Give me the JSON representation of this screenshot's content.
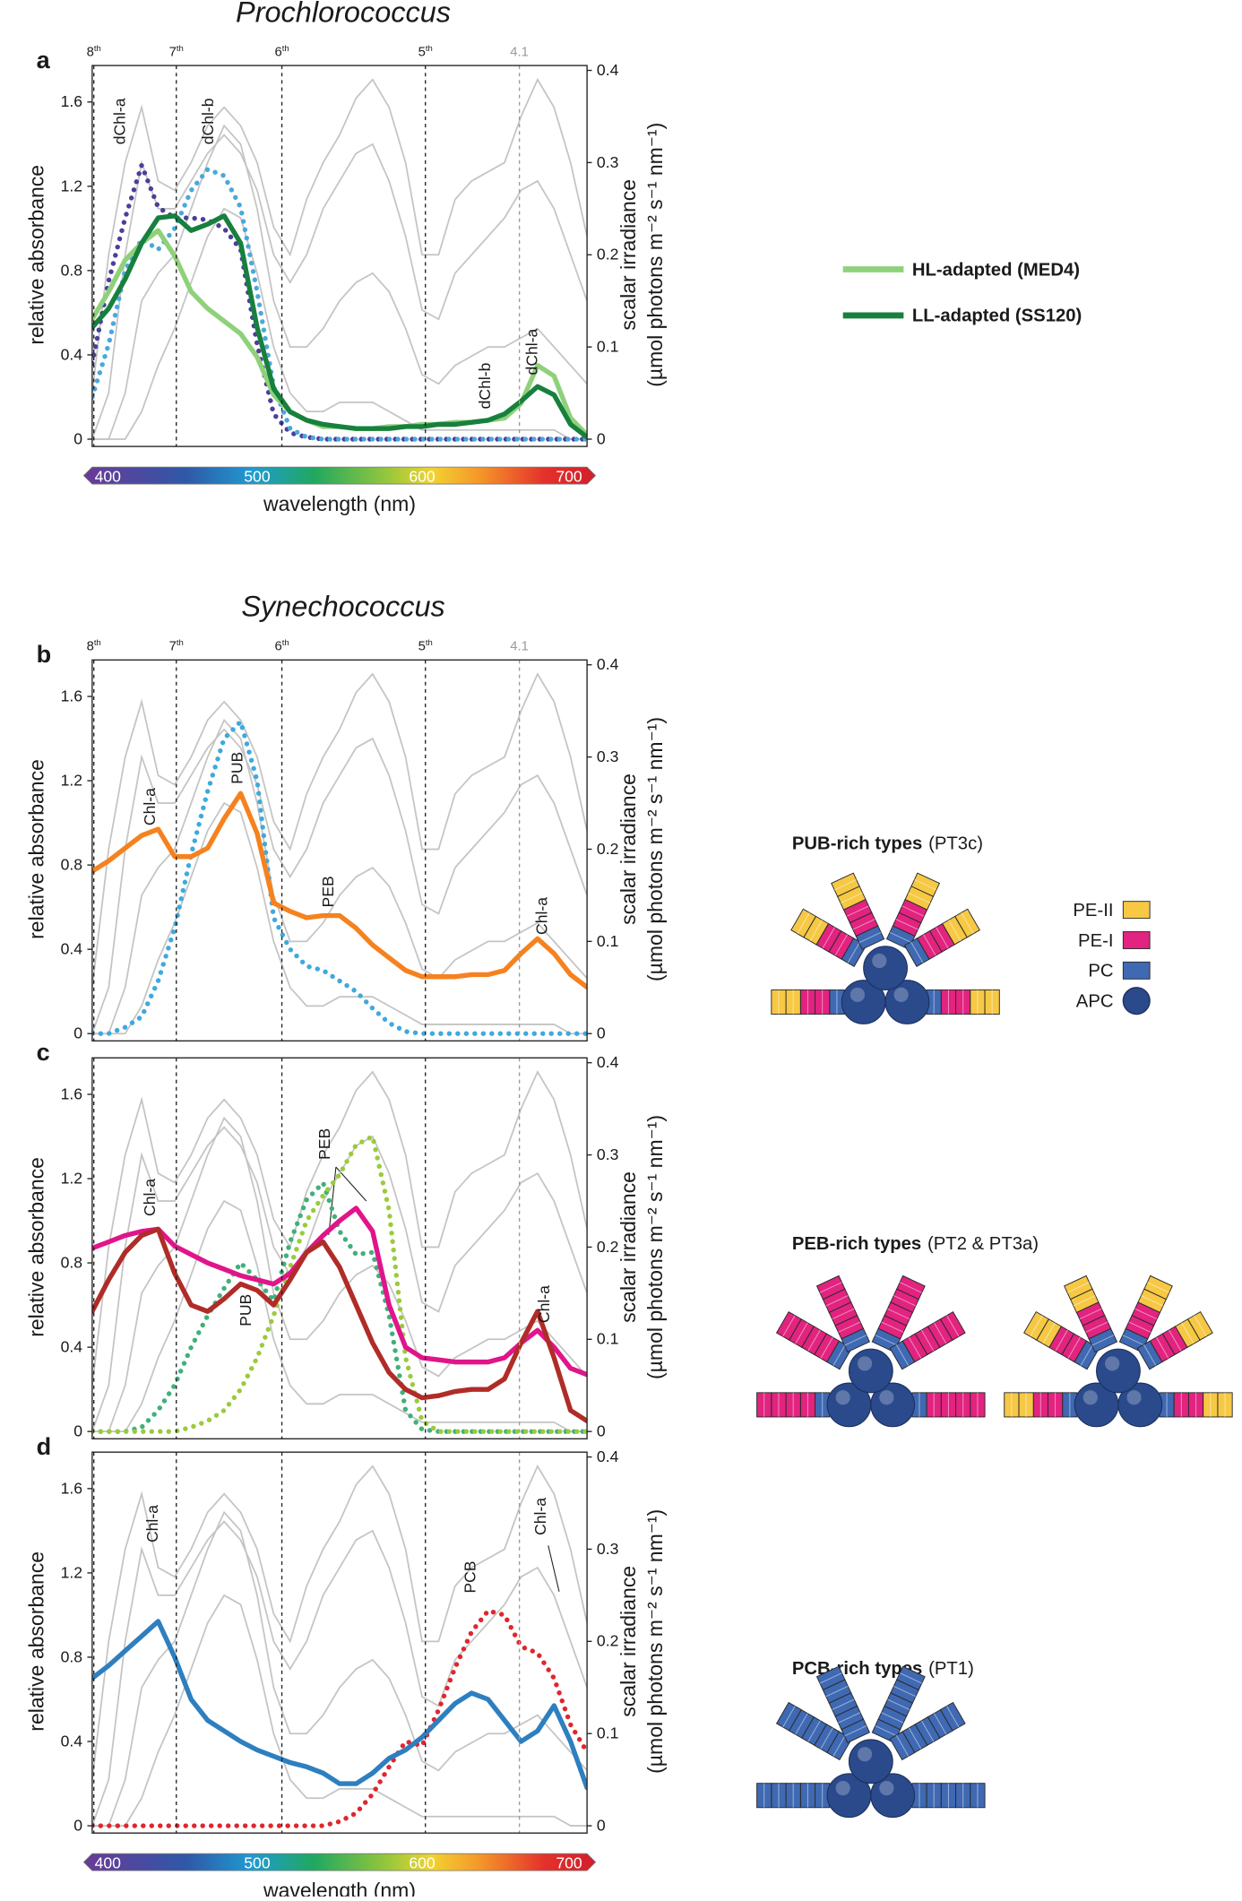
{
  "chart_data": [
    {
      "type": "line",
      "panel": "a",
      "title": "Prochlorococcus",
      "depth_labels": true,
      "x": [
        400,
        410,
        420,
        430,
        440,
        450,
        460,
        470,
        480,
        490,
        500,
        510,
        520,
        530,
        540,
        550,
        560,
        570,
        580,
        590,
        600,
        610,
        620,
        630,
        640,
        650,
        660,
        670,
        680,
        690,
        700
      ],
      "xlim": [
        400,
        700
      ],
      "xticks": [
        400,
        500,
        600,
        700
      ],
      "xlabel": "wavelength (nm)",
      "ylim": [
        0,
        1.75
      ],
      "yticks": [
        0,
        0.4,
        0.8,
        1.2,
        1.6
      ],
      "ylabel": "relative absorbance",
      "y2lim": [
        0,
        0.4
      ],
      "y2ticks": [
        0,
        0.1,
        0.2,
        0.3,
        0.4
      ],
      "y2label": [
        "scalar irradiance",
        "(µmol photons m⁻² s⁻¹ nm⁻¹)"
      ],
      "series": [
        {
          "color": "#4b3f98",
          "style": "dotted",
          "values": [
            0.36,
            0.75,
            1.05,
            1.3,
            1.1,
            1.05,
            1.05,
            1.04,
            1.0,
            0.9,
            0.45,
            0.12,
            0.03,
            0.01,
            0,
            0,
            0,
            0,
            0,
            0,
            0,
            0,
            0,
            0,
            0,
            0,
            0,
            0,
            0,
            0,
            0
          ]
        },
        {
          "color": "#4aa8dc",
          "style": "dotted",
          "values": [
            0.2,
            0.45,
            0.8,
            0.95,
            0.9,
            1.0,
            1.18,
            1.28,
            1.25,
            1.1,
            0.7,
            0.25,
            0.05,
            0.01,
            0,
            0,
            0,
            0,
            0,
            0,
            0,
            0,
            0,
            0,
            0,
            0,
            0,
            0,
            0,
            0,
            0
          ]
        },
        {
          "name": "HL-adapted (MED4)",
          "color": "#8fd17a",
          "style": "solid",
          "values": [
            0.57,
            0.7,
            0.85,
            0.93,
            0.99,
            0.87,
            0.7,
            0.62,
            0.56,
            0.5,
            0.39,
            0.21,
            0.13,
            0.09,
            0.06,
            0.06,
            0.05,
            0.05,
            0.06,
            0.06,
            0.07,
            0.07,
            0.08,
            0.08,
            0.09,
            0.1,
            0.17,
            0.35,
            0.3,
            0.1,
            0.02
          ]
        },
        {
          "name": "LL-adapted (SS120)",
          "color": "#17803d",
          "style": "solid",
          "values": [
            0.53,
            0.62,
            0.76,
            0.93,
            1.05,
            1.06,
            0.99,
            1.02,
            1.06,
            0.93,
            0.53,
            0.24,
            0.13,
            0.09,
            0.07,
            0.06,
            0.05,
            0.05,
            0.05,
            0.06,
            0.06,
            0.07,
            0.07,
            0.08,
            0.09,
            0.12,
            0.18,
            0.25,
            0.21,
            0.07,
            0.01
          ]
        }
      ],
      "annotations": [
        "dChl-a",
        "dChl-b",
        "dChl-b",
        "dChl-a"
      ]
    },
    {
      "type": "line",
      "panel": "b",
      "title": "Synechococcus",
      "depth_labels": true,
      "x": [
        400,
        410,
        420,
        430,
        440,
        450,
        460,
        470,
        480,
        490,
        500,
        510,
        520,
        530,
        540,
        550,
        560,
        570,
        580,
        590,
        600,
        610,
        620,
        630,
        640,
        650,
        660,
        670,
        680,
        690,
        700
      ],
      "xlim": [
        400,
        700
      ],
      "ylim": [
        0,
        1.75
      ],
      "yticks": [
        0,
        0.4,
        0.8,
        1.2,
        1.6
      ],
      "ylabel": "relative absorbance",
      "y2lim": [
        0,
        0.4
      ],
      "y2ticks": [
        0,
        0.1,
        0.2,
        0.3,
        0.4
      ],
      "y2label": [
        "scalar irradiance",
        "(µmol photons m⁻² s⁻¹ nm⁻¹)"
      ],
      "series": [
        {
          "color": "#3fa9dc",
          "style": "dotted",
          "values": [
            0,
            0,
            0.03,
            0.08,
            0.25,
            0.5,
            0.85,
            1.15,
            1.4,
            1.48,
            1.2,
            0.55,
            0.4,
            0.32,
            0.3,
            0.25,
            0.2,
            0.12,
            0.05,
            0.01,
            0,
            0,
            0,
            0,
            0,
            0,
            0,
            0,
            0,
            0,
            0
          ]
        },
        {
          "color": "#f5821f",
          "style": "solid",
          "values": [
            0.77,
            0.82,
            0.88,
            0.94,
            0.97,
            0.84,
            0.84,
            0.88,
            1.02,
            1.14,
            0.95,
            0.62,
            0.58,
            0.55,
            0.56,
            0.56,
            0.5,
            0.42,
            0.36,
            0.3,
            0.27,
            0.27,
            0.27,
            0.28,
            0.28,
            0.3,
            0.38,
            0.45,
            0.38,
            0.28,
            0.22
          ]
        }
      ],
      "annotations": [
        "Chl-a",
        "PUB",
        "PEB",
        "Chl-a"
      ]
    },
    {
      "type": "line",
      "panel": "c",
      "depth_labels": false,
      "x": [
        400,
        410,
        420,
        430,
        440,
        450,
        460,
        470,
        480,
        490,
        500,
        510,
        520,
        530,
        540,
        550,
        560,
        570,
        580,
        590,
        600,
        610,
        620,
        630,
        640,
        650,
        660,
        670,
        680,
        690,
        700
      ],
      "xlim": [
        400,
        700
      ],
      "ylim": [
        0,
        1.75
      ],
      "yticks": [
        0,
        0.4,
        0.8,
        1.2,
        1.6
      ],
      "ylabel": "relative absorbance",
      "y2lim": [
        0,
        0.4
      ],
      "y2ticks": [
        0,
        0.1,
        0.2,
        0.3,
        0.4
      ],
      "y2label": [
        "scalar irradiance",
        "(µmol photons m⁻² s⁻¹ nm⁻¹)"
      ],
      "series": [
        {
          "color": "#40b07a",
          "style": "dotted",
          "values": [
            0,
            0,
            0,
            0.02,
            0.1,
            0.22,
            0.4,
            0.55,
            0.68,
            0.8,
            0.72,
            0.62,
            0.9,
            1.1,
            1.18,
            0.95,
            0.84,
            0.85,
            0.55,
            0.1,
            0.01,
            0,
            0,
            0,
            0,
            0,
            0,
            0,
            0,
            0,
            0
          ]
        },
        {
          "color": "#9acb3c",
          "style": "dotted",
          "values": [
            0,
            0,
            0,
            0,
            0,
            0,
            0.02,
            0.05,
            0.1,
            0.2,
            0.35,
            0.55,
            0.78,
            1.0,
            1.12,
            1.22,
            1.36,
            1.4,
            1.05,
            0.35,
            0.05,
            0,
            0,
            0,
            0,
            0,
            0,
            0,
            0,
            0,
            0
          ]
        },
        {
          "color": "#e0158a",
          "style": "solid",
          "values": [
            0.87,
            0.9,
            0.93,
            0.95,
            0.96,
            0.88,
            0.84,
            0.8,
            0.77,
            0.74,
            0.72,
            0.7,
            0.75,
            0.85,
            0.93,
            1.0,
            1.06,
            0.95,
            0.6,
            0.4,
            0.35,
            0.34,
            0.33,
            0.33,
            0.33,
            0.35,
            0.42,
            0.48,
            0.4,
            0.3,
            0.27
          ]
        },
        {
          "color": "#b02c28",
          "style": "solid",
          "values": [
            0.57,
            0.72,
            0.85,
            0.93,
            0.96,
            0.75,
            0.6,
            0.57,
            0.63,
            0.7,
            0.67,
            0.6,
            0.72,
            0.85,
            0.9,
            0.78,
            0.6,
            0.42,
            0.28,
            0.2,
            0.16,
            0.17,
            0.19,
            0.2,
            0.2,
            0.25,
            0.42,
            0.57,
            0.35,
            0.1,
            0.05
          ]
        }
      ],
      "annotations": [
        "Chl-a",
        "PEB",
        "PUB",
        "Chl-a"
      ]
    },
    {
      "type": "line",
      "panel": "d",
      "depth_labels": false,
      "x": [
        400,
        410,
        420,
        430,
        440,
        450,
        460,
        470,
        480,
        490,
        500,
        510,
        520,
        530,
        540,
        550,
        560,
        570,
        580,
        590,
        600,
        610,
        620,
        630,
        640,
        650,
        660,
        670,
        680,
        690,
        700
      ],
      "xlim": [
        400,
        700
      ],
      "xticks": [
        400,
        500,
        600,
        700
      ],
      "xlabel": "wavelength (nm)",
      "ylim": [
        0,
        1.75
      ],
      "yticks": [
        0,
        0.4,
        0.8,
        1.2,
        1.6
      ],
      "ylabel": "relative absorbance",
      "y2lim": [
        0,
        0.4
      ],
      "y2ticks": [
        0,
        0.1,
        0.2,
        0.3,
        0.4
      ],
      "y2label": [
        "scalar irradiance",
        "(µmol photons m⁻² s⁻¹ nm⁻¹)"
      ],
      "series": [
        {
          "color": "#e0262d",
          "style": "dotted",
          "values": [
            0,
            0,
            0,
            0,
            0,
            0,
            0,
            0,
            0,
            0,
            0,
            0,
            0,
            0,
            0,
            0.02,
            0.06,
            0.15,
            0.28,
            0.4,
            0.38,
            0.55,
            0.75,
            0.92,
            1.02,
            1.0,
            0.85,
            0.82,
            0.7,
            0.48,
            0.35
          ]
        },
        {
          "color": "#2e7fbf",
          "style": "solid",
          "values": [
            0.7,
            0.76,
            0.83,
            0.9,
            0.97,
            0.8,
            0.6,
            0.5,
            0.45,
            0.4,
            0.36,
            0.33,
            0.3,
            0.28,
            0.25,
            0.2,
            0.2,
            0.25,
            0.32,
            0.36,
            0.42,
            0.5,
            0.58,
            0.63,
            0.6,
            0.5,
            0.4,
            0.45,
            0.57,
            0.4,
            0.18
          ]
        }
      ],
      "annotations": [
        "Chl-a",
        "PCB",
        "Chl-a"
      ]
    }
  ],
  "irradiance_spectra": {
    "color": "#c4c4c4",
    "x": [
      400,
      410,
      420,
      430,
      440,
      450,
      460,
      470,
      480,
      490,
      500,
      510,
      520,
      530,
      540,
      550,
      560,
      570,
      580,
      590,
      600,
      610,
      620,
      630,
      640,
      650,
      660,
      670,
      680,
      690,
      700
    ],
    "series": [
      {
        "values": [
          0.05,
          0.2,
          0.3,
          0.36,
          0.28,
          0.27,
          0.3,
          0.34,
          0.36,
          0.34,
          0.3,
          0.23,
          0.2,
          0.26,
          0.3,
          0.33,
          0.37,
          0.39,
          0.36,
          0.3,
          0.2,
          0.2,
          0.26,
          0.28,
          0.29,
          0.3,
          0.35,
          0.39,
          0.36,
          0.3,
          0.22
        ]
      },
      {
        "values": [
          0,
          0.05,
          0.2,
          0.3,
          0.25,
          0.25,
          0.28,
          0.31,
          0.33,
          0.31,
          0.27,
          0.2,
          0.17,
          0.2,
          0.25,
          0.28,
          0.31,
          0.32,
          0.28,
          0.22,
          0.14,
          0.13,
          0.18,
          0.2,
          0.22,
          0.24,
          0.27,
          0.28,
          0.25,
          0.2,
          0.15
        ]
      },
      {
        "values": [
          0,
          0,
          0.05,
          0.15,
          0.18,
          0.2,
          0.25,
          0.3,
          0.34,
          0.32,
          0.25,
          0.15,
          0.1,
          0.1,
          0.12,
          0.15,
          0.17,
          0.18,
          0.16,
          0.12,
          0.07,
          0.06,
          0.08,
          0.09,
          0.1,
          0.1,
          0.11,
          0.12,
          0.1,
          0.08,
          0.06
        ]
      },
      {
        "values": [
          0,
          0,
          0,
          0.03,
          0.08,
          0.12,
          0.17,
          0.22,
          0.25,
          0.24,
          0.18,
          0.1,
          0.05,
          0.03,
          0.03,
          0.04,
          0.04,
          0.04,
          0.03,
          0.02,
          0.01,
          0.01,
          0.01,
          0.01,
          0.01,
          0.01,
          0.01,
          0.01,
          0.01,
          0,
          0
        ]
      }
    ]
  },
  "depth_markers": [
    {
      "label": "8",
      "suffix": "th",
      "x": 401,
      "color": "#222222"
    },
    {
      "label": "7",
      "suffix": "th",
      "x": 451,
      "color": "#222222"
    },
    {
      "label": "6",
      "suffix": "th",
      "x": 515,
      "color": "#222222"
    },
    {
      "label": "5",
      "suffix": "th",
      "x": 602,
      "color": "#222222"
    },
    {
      "label": "4.1",
      "x": 659,
      "color": "#9a9a9a"
    }
  ],
  "phycobilisomes": {
    "key": [
      {
        "label": "PE-II",
        "color": "#f6c844"
      },
      {
        "label": "PE-I",
        "color": "#e2237f"
      },
      {
        "label": "PC",
        "color": "#3f69b3"
      },
      {
        "label": "APC",
        "color": "#2a4a8c"
      }
    ],
    "types": [
      {
        "name": "PUB-rich types",
        "code": "(PT3c)"
      },
      {
        "name": "PEB-rich types",
        "code": "(PT2 & PT3a)"
      },
      {
        "name": "PCB-rich types",
        "code": "(PT1)"
      }
    ]
  }
}
